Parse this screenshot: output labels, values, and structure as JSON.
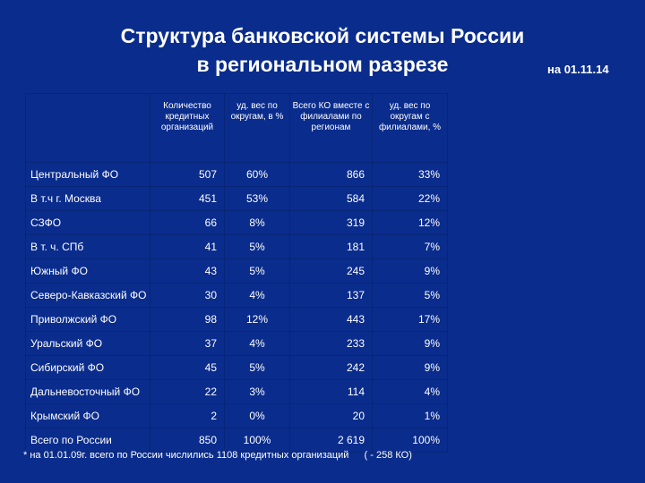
{
  "title": {
    "line1": "Структура банковской системы России",
    "line2": "в региональном разрезе"
  },
  "date": "на 01.11.14",
  "table": {
    "headers": [
      "",
      "Количество кредитных организаций",
      "уд. вес по округам, в %",
      "Всего КО вместе с филиалами по регионам",
      "уд. вес по округам с филиалами, %"
    ],
    "rows": [
      {
        "name": "Центральный ФО",
        "count": "507",
        "share": "60%",
        "total": "866",
        "share_branches": "33%"
      },
      {
        "name": "В т.ч г. Москва",
        "count": "451",
        "share": "53%",
        "total": "584",
        "share_branches": "22%"
      },
      {
        "name": "СЗФО",
        "count": "66",
        "share": "8%",
        "total": "319",
        "share_branches": "12%"
      },
      {
        "name": "В т. ч. СПб",
        "count": "41",
        "share": "5%",
        "total": "181",
        "share_branches": "7%"
      },
      {
        "name": "Южный ФО",
        "count": "43",
        "share": "5%",
        "total": "245",
        "share_branches": "9%"
      },
      {
        "name": "Северо-Кавказский ФО",
        "count": "30",
        "share": "4%",
        "total": "137",
        "share_branches": "5%"
      },
      {
        "name": "Приволжский ФО",
        "count": "98",
        "share": "12%",
        "total": "443",
        "share_branches": "17%"
      },
      {
        "name": "Уральский ФО",
        "count": "37",
        "share": "4%",
        "total": "233",
        "share_branches": "9%"
      },
      {
        "name": "Сибирский ФО",
        "count": "45",
        "share": "5%",
        "total": "242",
        "share_branches": "9%"
      },
      {
        "name": "Дальневосточный ФО",
        "count": "22",
        "share": "3%",
        "total": "114",
        "share_branches": "4%"
      },
      {
        "name": "Крымский ФО",
        "count": "2",
        "share": "0%",
        "total": "20",
        "share_branches": "1%"
      },
      {
        "name": "Всего по России",
        "count": "850",
        "share": "100%",
        "total": "2 619",
        "share_branches": "100%"
      }
    ]
  },
  "footnote": {
    "text": "* на 01.01.09г. всего по России числились 1108 кредитных организаций",
    "extra": "( - 258 КО)"
  }
}
